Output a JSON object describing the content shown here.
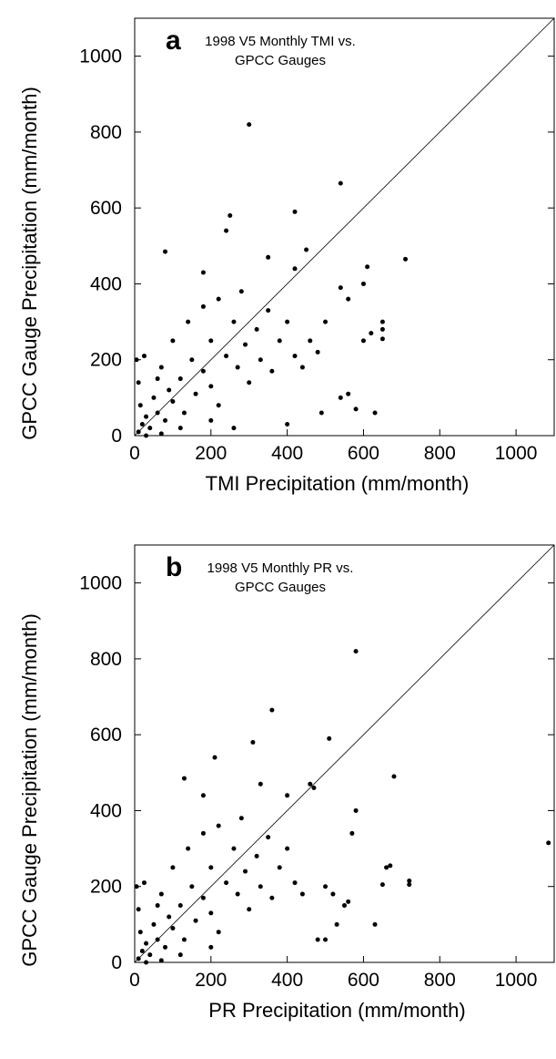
{
  "chart_data": [
    {
      "type": "scatter",
      "label": "a",
      "annotation": [
        "1998 V5 Monthly TMI vs.",
        "GPCC Gauges"
      ],
      "x_label": "TMI Precipitation (mm/month)",
      "y_label": "GPCC Gauge Precipitation (mm/month)",
      "xlim": [
        0,
        1100
      ],
      "ylim": [
        0,
        1100
      ],
      "xticks": [
        0,
        200,
        400,
        600,
        800,
        1000
      ],
      "yticks": [
        0,
        200,
        400,
        600,
        800,
        1000
      ],
      "color": "#000000",
      "reference_line": true,
      "x": [
        300,
        540,
        420,
        250,
        240,
        710,
        610,
        80,
        180,
        350,
        450,
        420,
        600,
        540,
        560,
        650,
        650,
        650,
        600,
        620,
        560,
        540,
        580,
        630,
        490,
        400,
        260,
        10,
        20,
        30,
        15,
        40,
        50,
        60,
        80,
        90,
        100,
        120,
        130,
        150,
        160,
        180,
        200,
        200,
        220,
        240,
        260,
        270,
        290,
        300,
        320,
        330,
        350,
        360,
        380,
        400,
        420,
        440,
        460,
        480,
        500,
        10,
        5,
        25,
        70,
        100,
        140,
        180,
        220,
        280,
        70,
        120,
        200,
        30,
        60
      ],
      "y": [
        820,
        665,
        590,
        580,
        540,
        465,
        445,
        485,
        430,
        470,
        490,
        440,
        400,
        390,
        360,
        300,
        280,
        255,
        250,
        270,
        110,
        100,
        70,
        60,
        60,
        30,
        20,
        10,
        30,
        50,
        80,
        20,
        100,
        60,
        40,
        120,
        90,
        150,
        60,
        200,
        110,
        170,
        250,
        130,
        80,
        210,
        300,
        180,
        240,
        140,
        280,
        200,
        330,
        170,
        250,
        300,
        210,
        180,
        250,
        220,
        300,
        140,
        200,
        210,
        180,
        250,
        300,
        340,
        360,
        380,
        5,
        20,
        40,
        0,
        150
      ]
    },
    {
      "type": "scatter",
      "label": "b",
      "annotation": [
        "1998 V5 Monthly PR vs.",
        "GPCC Gauges"
      ],
      "x_label": "PR Precipitation (mm/month)",
      "y_label": "GPCC Gauge Precipitation (mm/month)",
      "xlim": [
        0,
        1100
      ],
      "ylim": [
        0,
        1100
      ],
      "xticks": [
        0,
        200,
        400,
        600,
        800,
        1000
      ],
      "yticks": [
        0,
        200,
        400,
        600,
        800,
        1000
      ],
      "color": "#000000",
      "reference_line": true,
      "x": [
        580,
        360,
        510,
        310,
        210,
        680,
        580,
        570,
        460,
        470,
        130,
        180,
        330,
        400,
        1085,
        670,
        660,
        720,
        720,
        650,
        630,
        500,
        520,
        560,
        530,
        480,
        500,
        550,
        10,
        20,
        30,
        15,
        40,
        50,
        60,
        80,
        90,
        100,
        120,
        130,
        150,
        160,
        180,
        200,
        200,
        220,
        240,
        260,
        270,
        290,
        300,
        320,
        330,
        350,
        360,
        380,
        400,
        420,
        440,
        10,
        5,
        25,
        70,
        100,
        140,
        180,
        220,
        280,
        70,
        120,
        200,
        30,
        60
      ],
      "y": [
        820,
        665,
        590,
        580,
        540,
        490,
        400,
        340,
        470,
        460,
        485,
        440,
        470,
        440,
        315,
        255,
        250,
        215,
        205,
        205,
        100,
        200,
        180,
        160,
        100,
        60,
        60,
        150,
        10,
        30,
        50,
        80,
        20,
        100,
        60,
        40,
        120,
        90,
        150,
        60,
        200,
        110,
        170,
        250,
        130,
        80,
        210,
        300,
        180,
        240,
        140,
        280,
        200,
        330,
        170,
        250,
        300,
        210,
        180,
        140,
        200,
        210,
        180,
        250,
        300,
        340,
        360,
        380,
        5,
        20,
        40,
        0,
        150
      ]
    }
  ]
}
